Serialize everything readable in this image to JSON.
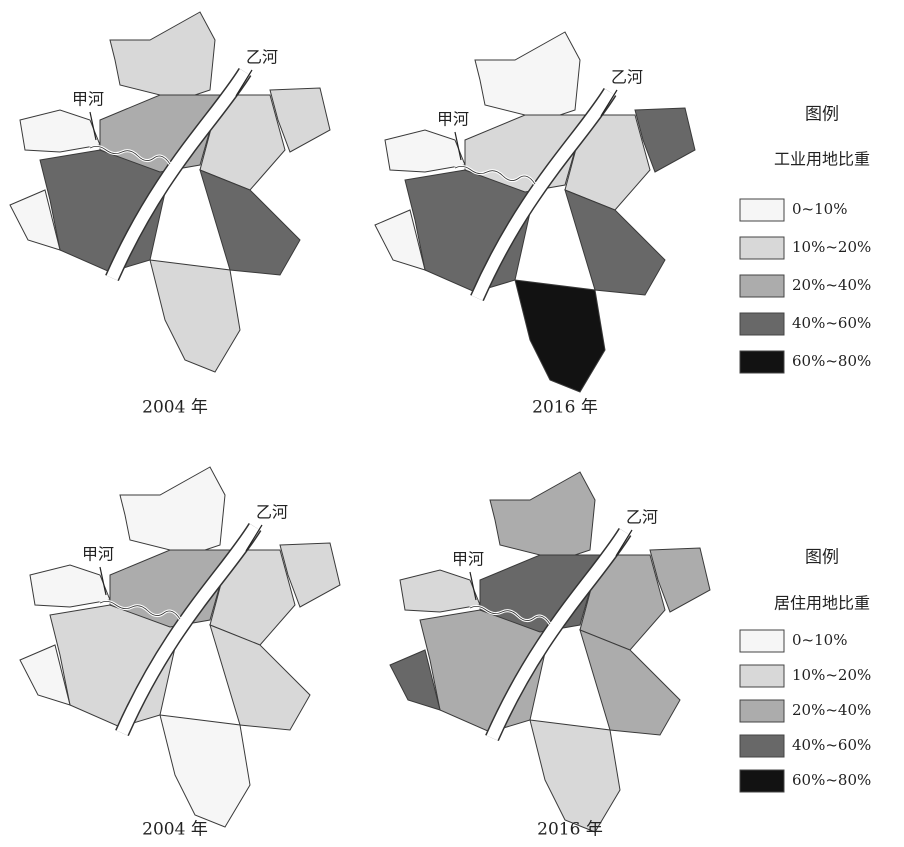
{
  "maps": [
    {
      "caption": "2004 年",
      "river_a": "甲河",
      "river_b": "乙河"
    },
    {
      "caption": "2016 年",
      "river_a": "甲河",
      "river_b": "乙河"
    },
    {
      "caption": "2004 年",
      "river_a": "甲河",
      "river_b": "乙河"
    },
    {
      "caption": "2016 年",
      "river_a": "甲河",
      "river_b": "乙河"
    }
  ],
  "legends": [
    {
      "title": "图例",
      "subtitle": "工业用地比重",
      "items": [
        {
          "label": "0~10%",
          "color": "#f6f6f6"
        },
        {
          "label": "10%~20%",
          "color": "#d8d8d8"
        },
        {
          "label": "20%~40%",
          "color": "#acacac"
        },
        {
          "label": "40%~60%",
          "color": "#686868"
        },
        {
          "label": "60%~80%",
          "color": "#121212"
        }
      ]
    },
    {
      "title": "图例",
      "subtitle": "居住用地比重",
      "items": [
        {
          "label": "0~10%",
          "color": "#f6f6f6"
        },
        {
          "label": "10%~20%",
          "color": "#d8d8d8"
        },
        {
          "label": "20%~40%",
          "color": "#acacac"
        },
        {
          "label": "40%~60%",
          "color": "#686868"
        },
        {
          "label": "60%~80%",
          "color": "#121212"
        }
      ]
    }
  ]
}
